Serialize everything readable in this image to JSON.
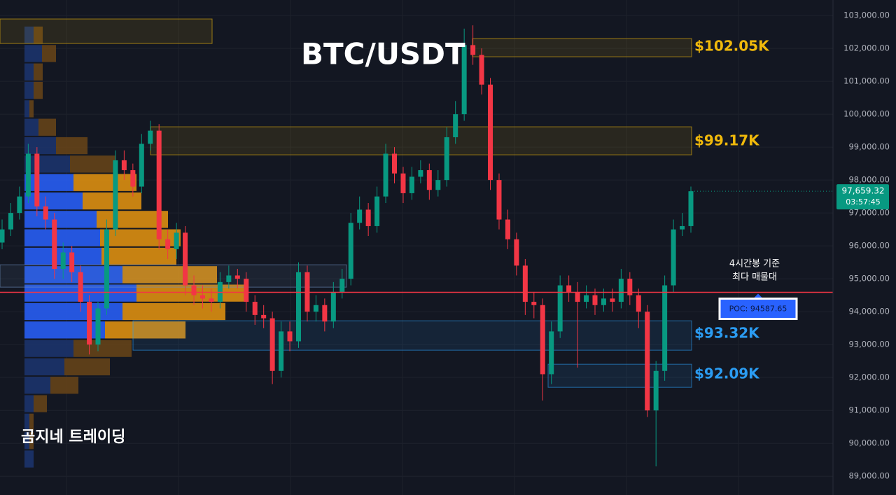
{
  "chart_data": {
    "type": "candlestick",
    "title": "BTC/USDT",
    "watermark": "곰지네 트레이딩",
    "ylim": [
      88430,
      103470
    ],
    "yticks": [
      {
        "value": 89000,
        "label": "89,000.00"
      },
      {
        "value": 90000,
        "label": "90,000.00"
      },
      {
        "value": 91000,
        "label": "91,000.00"
      },
      {
        "value": 92000,
        "label": "92,000.00"
      },
      {
        "value": 93000,
        "label": "93,000.00"
      },
      {
        "value": 94000,
        "label": "94,000.00"
      },
      {
        "value": 95000,
        "label": "95,000.00"
      },
      {
        "value": 96000,
        "label": "96,000.00"
      },
      {
        "value": 97000,
        "label": "97,000.00"
      },
      {
        "value": 98000,
        "label": "98,000.00"
      },
      {
        "value": 99000,
        "label": "99,000.00"
      },
      {
        "value": 100000,
        "label": "100,000.00"
      },
      {
        "value": 101000,
        "label": "101,000.00"
      },
      {
        "value": 102000,
        "label": "102,000.00"
      },
      {
        "value": 103000,
        "label": "103,000.00"
      }
    ],
    "grid": true,
    "up_color": "#089981",
    "down_color": "#f23645",
    "series": {
      "open": [
        96100,
        96500,
        97000,
        97500,
        98800,
        97200,
        96800,
        95300,
        95800,
        95200,
        94300,
        93000,
        94100,
        96500,
        98600,
        98300,
        97800,
        99100,
        99500,
        96200,
        95900,
        96400,
        94800,
        94500,
        94400,
        94300,
        94900,
        95100,
        95000,
        94300,
        93900,
        93800,
        92200,
        93400,
        93100,
        95200,
        94000,
        94200,
        93700,
        94600,
        95000,
        96700,
        97100,
        96600,
        97500,
        98800,
        98200,
        97600,
        98100,
        98300,
        97700,
        98000,
        99300,
        100000,
        102100,
        101800,
        100900,
        98000,
        96800,
        96200,
        95400,
        94300,
        94200,
        92100,
        93400,
        94800,
        94600,
        94300,
        94500,
        94200,
        94400,
        94300,
        95000,
        94500,
        94000,
        91000,
        92200,
        94800,
        96500,
        96600
      ],
      "high": [
        96800,
        97300,
        97800,
        99100,
        99000,
        97500,
        97000,
        96100,
        96000,
        95400,
        94500,
        94300,
        96800,
        98900,
        98900,
        98500,
        99400,
        99800,
        99700,
        96500,
        96700,
        96600,
        95100,
        94800,
        94700,
        95200,
        95400,
        95300,
        95200,
        94500,
        94200,
        94000,
        93700,
        93700,
        95500,
        95400,
        94500,
        94400,
        94900,
        95300,
        97000,
        97500,
        97300,
        97800,
        99100,
        99000,
        98400,
        98400,
        98600,
        98500,
        98300,
        99600,
        100400,
        102600,
        102700,
        102000,
        101100,
        98200,
        97100,
        96400,
        95600,
        94600,
        94400,
        93700,
        95100,
        95100,
        94900,
        94800,
        94700,
        94700,
        94700,
        95300,
        95200,
        94700,
        94200,
        92500,
        95100,
        96800,
        97000,
        97800
      ],
      "low": [
        95900,
        96300,
        96800,
        97300,
        96900,
        96500,
        95000,
        95000,
        94900,
        94000,
        92700,
        92800,
        93900,
        96300,
        98000,
        97500,
        97600,
        98900,
        95900,
        95600,
        95600,
        94500,
        94200,
        94100,
        94000,
        94100,
        94700,
        94700,
        94000,
        93600,
        93500,
        91800,
        92000,
        92800,
        92900,
        93700,
        93700,
        93400,
        93500,
        94400,
        94800,
        96500,
        96300,
        96400,
        97300,
        97900,
        97300,
        97400,
        97900,
        97400,
        97500,
        97800,
        99100,
        99800,
        101500,
        100600,
        97700,
        96500,
        95900,
        95100,
        93900,
        93800,
        91300,
        91800,
        93200,
        94300,
        92300,
        94100,
        93900,
        94000,
        94000,
        94100,
        94200,
        93500,
        90800,
        89300,
        91900,
        94600,
        96300,
        96400
      ],
      "close": [
        96500,
        97000,
        97500,
        98800,
        97200,
        96800,
        95300,
        95800,
        95200,
        94300,
        93000,
        94100,
        96500,
        98600,
        98300,
        97800,
        99100,
        99500,
        96200,
        95900,
        96400,
        94800,
        94500,
        94400,
        94300,
        94900,
        95100,
        95000,
        94300,
        93900,
        93800,
        92200,
        93400,
        93100,
        95200,
        94000,
        94200,
        93700,
        94600,
        95000,
        96700,
        97100,
        96600,
        97500,
        98800,
        98200,
        97600,
        98100,
        98300,
        97700,
        98000,
        99300,
        100000,
        102100,
        101800,
        100900,
        98000,
        96800,
        96200,
        95400,
        94300,
        94200,
        92100,
        93400,
        94800,
        94600,
        94300,
        94500,
        94200,
        94400,
        94300,
        95000,
        94500,
        94000,
        91000,
        92200,
        94800,
        96500,
        96600,
        97659.32
      ]
    },
    "last_price": {
      "value": 97659.32,
      "label": "97,659.32",
      "countdown": "03:57:45",
      "color": "#089981"
    },
    "poc": {
      "value": 94587.65,
      "label": "POC: 94587.65",
      "color": "#f23645",
      "note": [
        "4시간봉 기준",
        "최다 매물대"
      ]
    },
    "zones": [
      {
        "top": 102298,
        "bottom": 101745,
        "value": 102050,
        "label": "$102.05K",
        "color": "#f0b90b"
      },
      {
        "top": 99617,
        "bottom": 98766,
        "value": 99170,
        "label": "$99.17K",
        "color": "#f0b90b"
      },
      {
        "top": 93723,
        "bottom": 92830,
        "value": 93320,
        "label": "$93.32K",
        "color": "#2b9cf2"
      },
      {
        "top": 92404,
        "bottom": 91702,
        "value": 92090,
        "label": "$92.09K",
        "color": "#2b9cf2"
      },
      {
        "top": 102894,
        "bottom": 102149,
        "color": "#f0b90b"
      },
      {
        "top": 95425,
        "bottom": 94745,
        "color": "#6f8fbf"
      }
    ],
    "volume_profile": {
      "levels": [
        102404,
        101844,
        101284,
        100724,
        100164,
        99604,
        99044,
        98484,
        97924,
        97364,
        96804,
        96244,
        95684,
        95124,
        94564,
        94004,
        93444,
        92884,
        92324,
        91764,
        91204,
        90644,
        90084,
        89524
      ],
      "buy": [
        13,
        25,
        13,
        13,
        7,
        20,
        45,
        65,
        70,
        83,
        103,
        108,
        110,
        140,
        160,
        140,
        115,
        70,
        57,
        37,
        13,
        7,
        7,
        13
      ],
      "sell": [
        13,
        20,
        13,
        13,
        6,
        25,
        45,
        65,
        90,
        84,
        102,
        115,
        107,
        135,
        160,
        147,
        115,
        83,
        65,
        40,
        19,
        6,
        6,
        0
      ],
      "xlim": [
        0,
        400
      ],
      "value_area": [
        93164,
        98204
      ],
      "buy_color": "#2962ff",
      "sell_color": "#e8950f",
      "buy_dim_color": "#1c3570",
      "sell_dim_color": "#6a4518"
    }
  }
}
